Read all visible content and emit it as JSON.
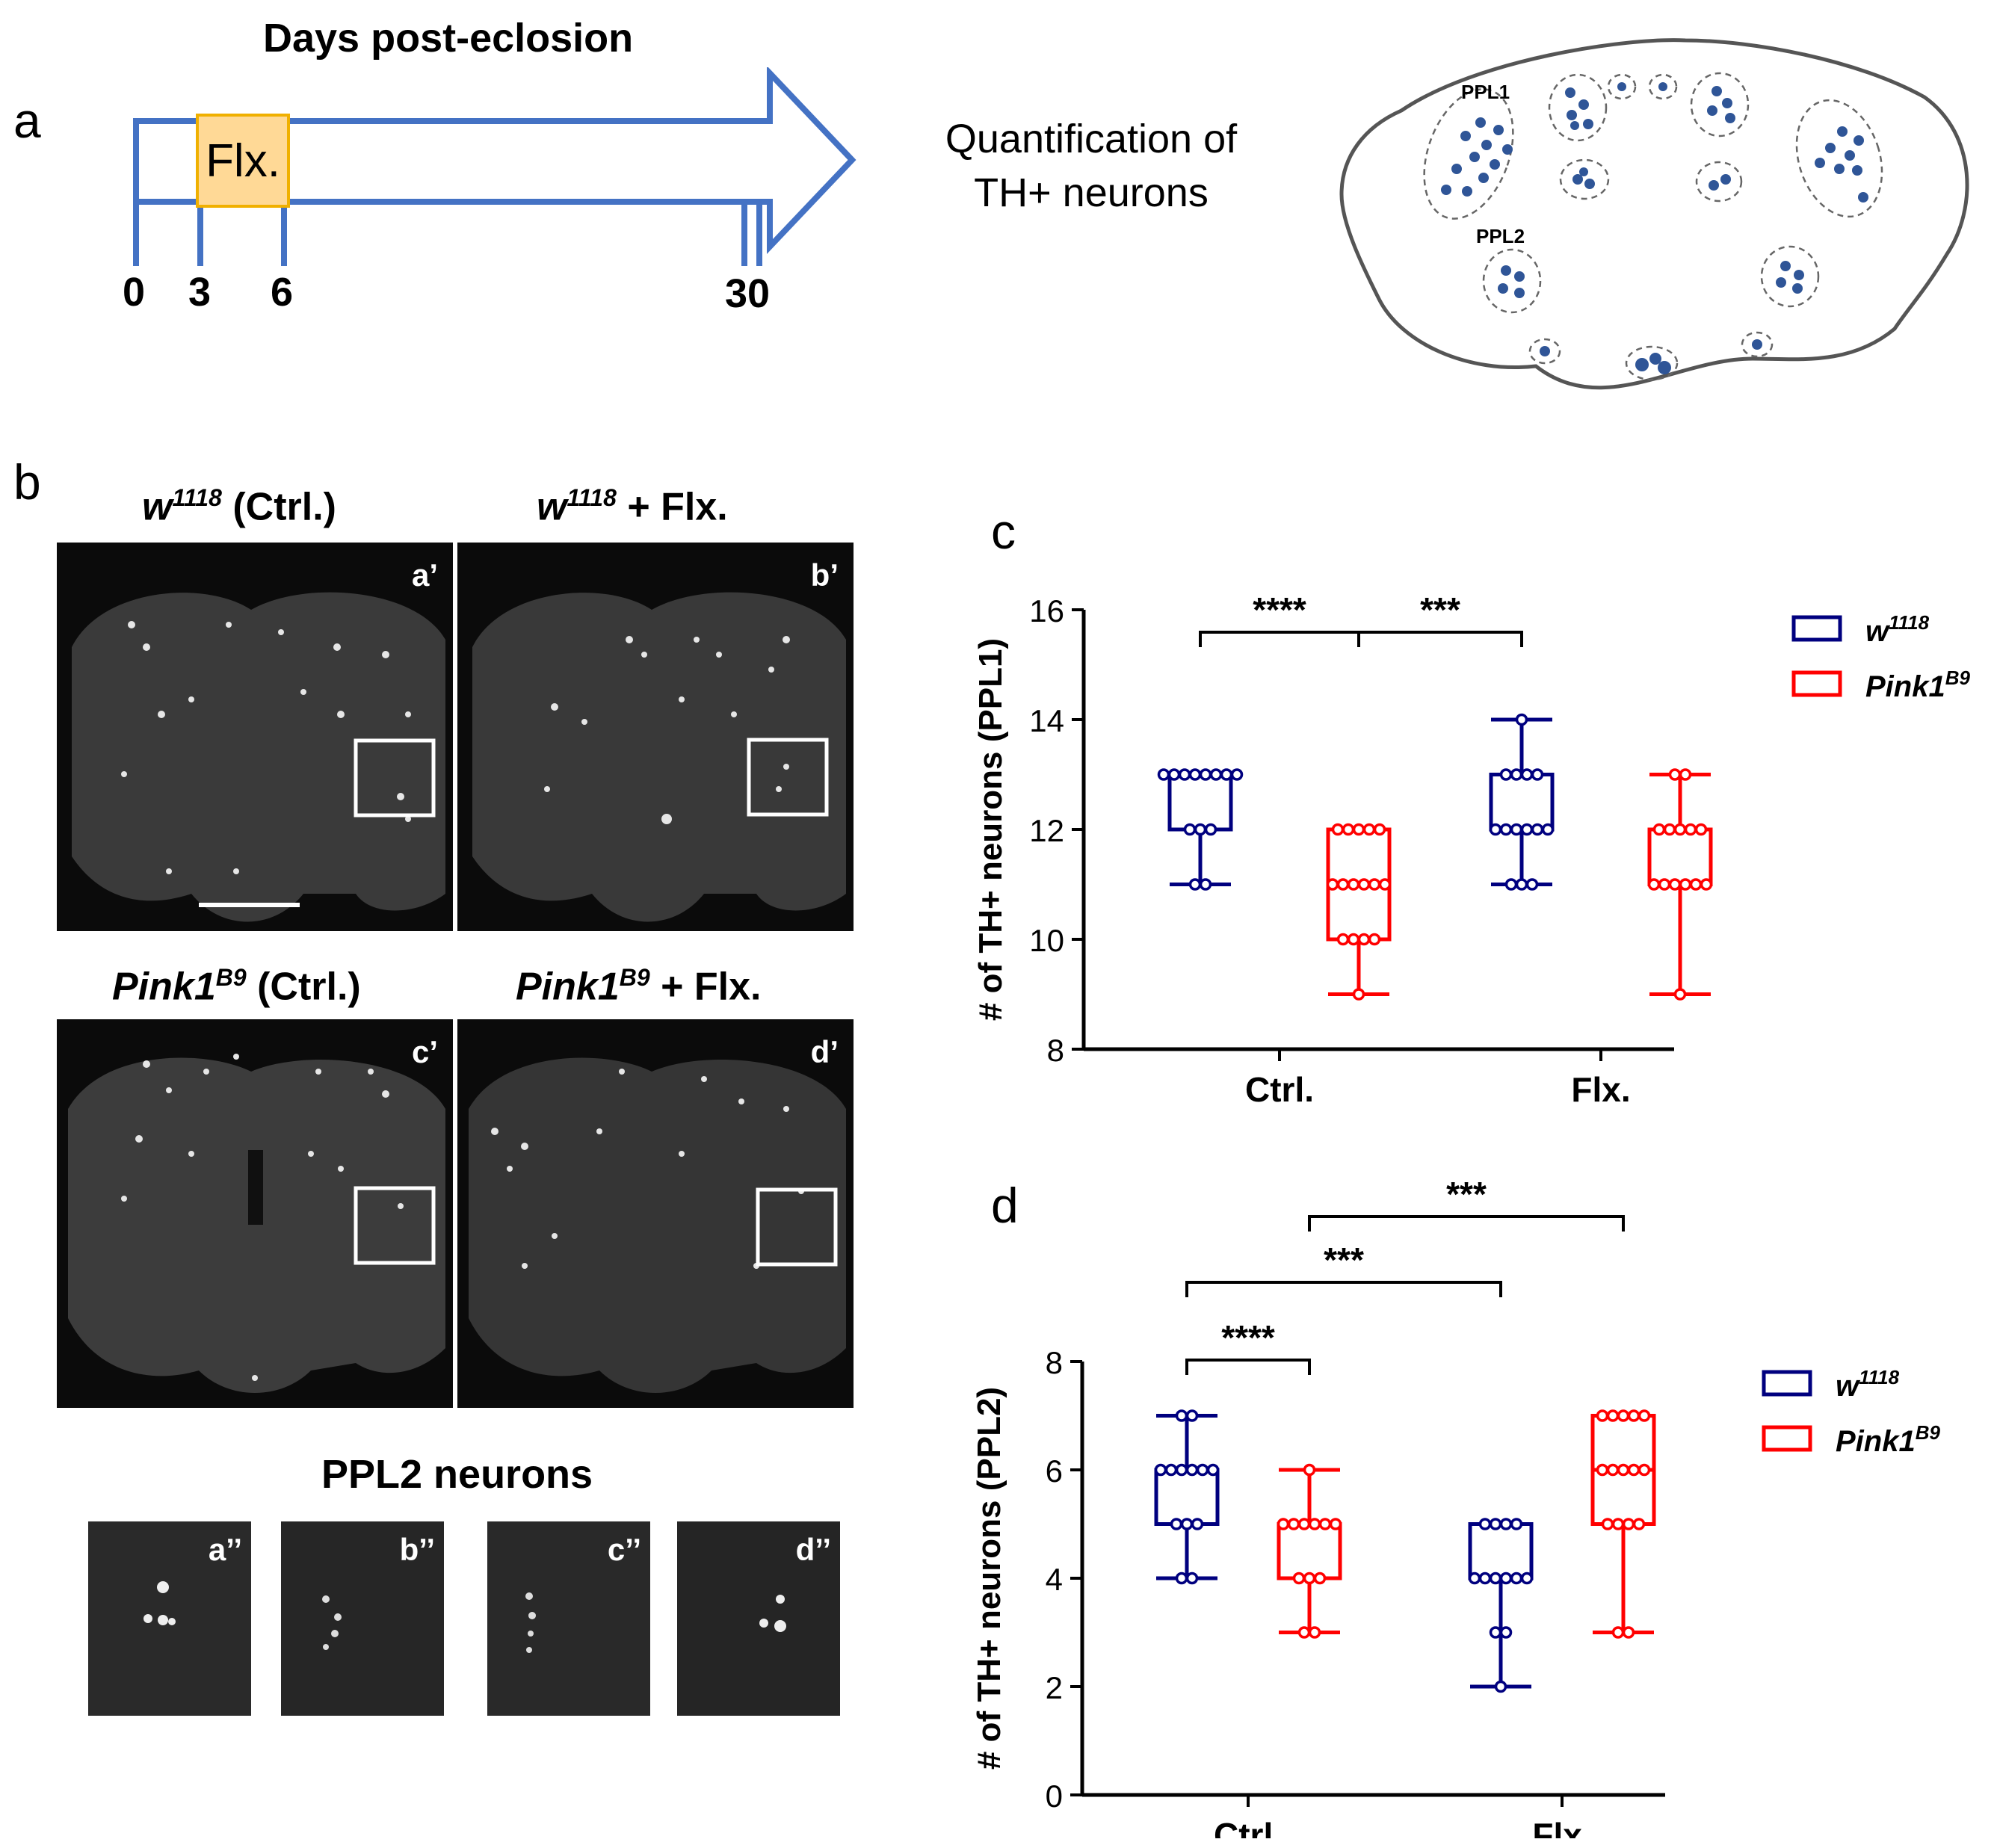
{
  "panel_a": {
    "label": "a",
    "timeline_title": "Days post-eclosion",
    "treatment": "Flx.",
    "ticks": [
      "0",
      "3",
      "6",
      "30"
    ],
    "quantification": "Quantification of TH+ neurons",
    "brain_labels": {
      "ppl1": "PPL1",
      "ppl2": "PPL2"
    }
  },
  "panel_b": {
    "label": "b",
    "rows": [
      {
        "panes": [
          {
            "genotype": "w",
            "sup": "1118",
            "suffix": " (Ctrl.)",
            "tag": "a’"
          },
          {
            "genotype": "w",
            "sup": "1118",
            "suffix": " + Flx.",
            "tag": "b’"
          }
        ]
      },
      {
        "panes": [
          {
            "genotype": "Pink1",
            "sup": "B9",
            "suffix": " (Ctrl.)",
            "tag": "c’"
          },
          {
            "genotype": "Pink1",
            "sup": "B9",
            "suffix": " + Flx.",
            "tag": "d’"
          }
        ]
      }
    ],
    "ppl2_title": "PPL2 neurons",
    "insets": [
      "a’’",
      "b’’",
      "c’’",
      "d’’"
    ]
  },
  "colors": {
    "w1118": "#00007f",
    "pink1": "#ff0000",
    "timeline": "#4472c4",
    "flx_box": "#ffd996",
    "flx_border": "#f0b000",
    "neuron": "#2f5597"
  },
  "chart_data": [
    {
      "panel": "c",
      "type": "box",
      "ylabel": "# of TH+ neurons (PPL1)",
      "ylim": [
        8,
        16
      ],
      "yticks": [
        8,
        10,
        12,
        14,
        16
      ],
      "categories": [
        "Ctrl.",
        "Flx."
      ],
      "legend": [
        "w1118",
        "Pink1B9"
      ],
      "legend_display": [
        {
          "base": "w",
          "sup": "1118"
        },
        {
          "base": "Pink1",
          "sup": "B9"
        }
      ],
      "series": [
        {
          "name": "w1118",
          "boxes": [
            {
              "category": "Ctrl.",
              "min": 11,
              "q1": 12,
              "median": 13,
              "q3": 13,
              "max": 13,
              "points": [
                13,
                13,
                13,
                13,
                13,
                13,
                13,
                13,
                12,
                12,
                12,
                11,
                11
              ]
            },
            {
              "category": "Flx.",
              "min": 11,
              "q1": 12,
              "median": 12,
              "q3": 13,
              "max": 14,
              "points": [
                14,
                13,
                13,
                13,
                13,
                12,
                12,
                12,
                12,
                12,
                12,
                11,
                11,
                11
              ]
            }
          ]
        },
        {
          "name": "Pink1B9",
          "boxes": [
            {
              "category": "Ctrl.",
              "min": 9,
              "q1": 10,
              "median": 11,
              "q3": 12,
              "max": 12,
              "points": [
                12,
                12,
                12,
                12,
                12,
                11,
                11,
                11,
                11,
                11,
                11,
                10,
                10,
                10,
                10,
                9
              ]
            },
            {
              "category": "Flx.",
              "min": 9,
              "q1": 11,
              "median": 11,
              "q3": 12,
              "max": 13,
              "points": [
                13,
                13,
                12,
                12,
                12,
                12,
                12,
                11,
                11,
                11,
                11,
                11,
                11,
                9
              ]
            }
          ]
        }
      ],
      "significance": [
        {
          "from": "Ctrl. w1118",
          "to": "Ctrl. Pink1B9",
          "label": "****"
        },
        {
          "from": "Ctrl. Pink1B9",
          "to": "Flx. w1118",
          "label": "***"
        }
      ]
    },
    {
      "panel": "d",
      "type": "box",
      "ylabel": "# of TH+ neurons (PPL2)",
      "ylim": [
        0,
        8
      ],
      "yticks": [
        0,
        2,
        4,
        6,
        8
      ],
      "categories": [
        "Ctrl.",
        "Flx."
      ],
      "legend": [
        "w1118",
        "Pink1B9"
      ],
      "legend_display": [
        {
          "base": "w",
          "sup": "1118"
        },
        {
          "base": "Pink1",
          "sup": "B9"
        }
      ],
      "series": [
        {
          "name": "w1118",
          "boxes": [
            {
              "category": "Ctrl.",
              "min": 4,
              "q1": 5,
              "median": 6,
              "q3": 6,
              "max": 7,
              "points": [
                7,
                7,
                6,
                6,
                6,
                6,
                6,
                6,
                5,
                5,
                5,
                4,
                4
              ]
            },
            {
              "category": "Flx.",
              "min": 2,
              "q1": 4,
              "median": 4,
              "q3": 5,
              "max": 5,
              "points": [
                5,
                5,
                5,
                5,
                4,
                4,
                4,
                4,
                4,
                4,
                3,
                3,
                2
              ]
            }
          ]
        },
        {
          "name": "Pink1B9",
          "boxes": [
            {
              "category": "Ctrl.",
              "min": 3,
              "q1": 4,
              "median": 5,
              "q3": 5,
              "max": 6,
              "points": [
                6,
                5,
                5,
                5,
                5,
                5,
                5,
                4,
                4,
                4,
                3,
                3
              ]
            },
            {
              "category": "Flx.",
              "min": 3,
              "q1": 5,
              "median": 6,
              "q3": 7,
              "max": 7,
              "points": [
                7,
                7,
                7,
                7,
                7,
                6,
                6,
                6,
                6,
                6,
                5,
                5,
                5,
                5,
                3,
                3
              ]
            }
          ]
        }
      ],
      "significance": [
        {
          "from": "Ctrl. w1118",
          "to": "Ctrl. Pink1B9",
          "label": "****"
        },
        {
          "from": "Ctrl. w1118",
          "to": "Flx. w1118",
          "label": "***"
        },
        {
          "from": "Ctrl. Pink1B9",
          "to": "Flx. Pink1B9",
          "label": "***"
        }
      ]
    }
  ]
}
